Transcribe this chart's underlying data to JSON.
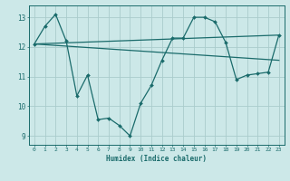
{
  "xlabel": "Humidex (Indice chaleur)",
  "ylabel": "",
  "background_color": "#cce8e8",
  "grid_color": "#aacccc",
  "line_color": "#1a6b6b",
  "xlim": [
    -0.5,
    23.5
  ],
  "ylim": [
    8.7,
    13.4
  ],
  "yticks": [
    9,
    10,
    11,
    12,
    13
  ],
  "xticks": [
    0,
    1,
    2,
    3,
    4,
    5,
    6,
    7,
    8,
    9,
    10,
    11,
    12,
    13,
    14,
    15,
    16,
    17,
    18,
    19,
    20,
    21,
    22,
    23
  ],
  "series": [
    {
      "x": [
        0,
        1,
        2,
        3,
        4,
        5,
        6,
        7,
        8,
        9,
        10,
        11,
        12,
        13,
        14,
        15,
        16,
        17,
        18,
        19,
        20,
        21,
        22,
        23
      ],
      "y": [
        12.1,
        12.7,
        13.1,
        12.2,
        10.35,
        11.05,
        9.55,
        9.6,
        9.35,
        9.0,
        10.1,
        10.7,
        11.55,
        12.3,
        12.3,
        13.0,
        13.0,
        12.85,
        12.15,
        10.9,
        11.05,
        11.1,
        11.15,
        12.4
      ],
      "marker": true
    },
    {
      "x": [
        0,
        23
      ],
      "y": [
        12.1,
        12.4
      ],
      "marker": false
    },
    {
      "x": [
        0,
        23
      ],
      "y": [
        12.1,
        11.55
      ],
      "marker": false
    }
  ]
}
